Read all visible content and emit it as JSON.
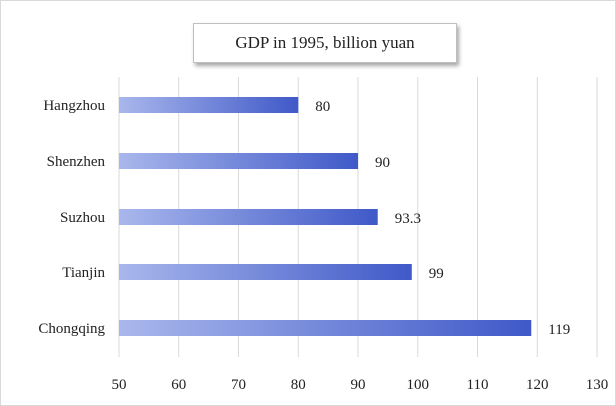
{
  "chart_data": {
    "type": "bar",
    "orientation": "horizontal",
    "title": "GDP in 1995, billion  yuan",
    "categories": [
      "Hangzhou",
      "Shenzhen",
      "Suzhou",
      "Tianjin",
      "Chongqing"
    ],
    "values": [
      80,
      90,
      93.3,
      99,
      119
    ],
    "value_labels": [
      "80",
      "90",
      "93.3",
      "99",
      "119"
    ],
    "xlim": [
      50,
      130
    ],
    "xticks": [
      50,
      60,
      70,
      80,
      90,
      100,
      110,
      120,
      130
    ],
    "grid": "vertical",
    "legend": "none",
    "colors": {
      "bar_start": "#a9b7ec",
      "bar_end": "#3f59c8",
      "grid": "#d9d9d9"
    }
  }
}
